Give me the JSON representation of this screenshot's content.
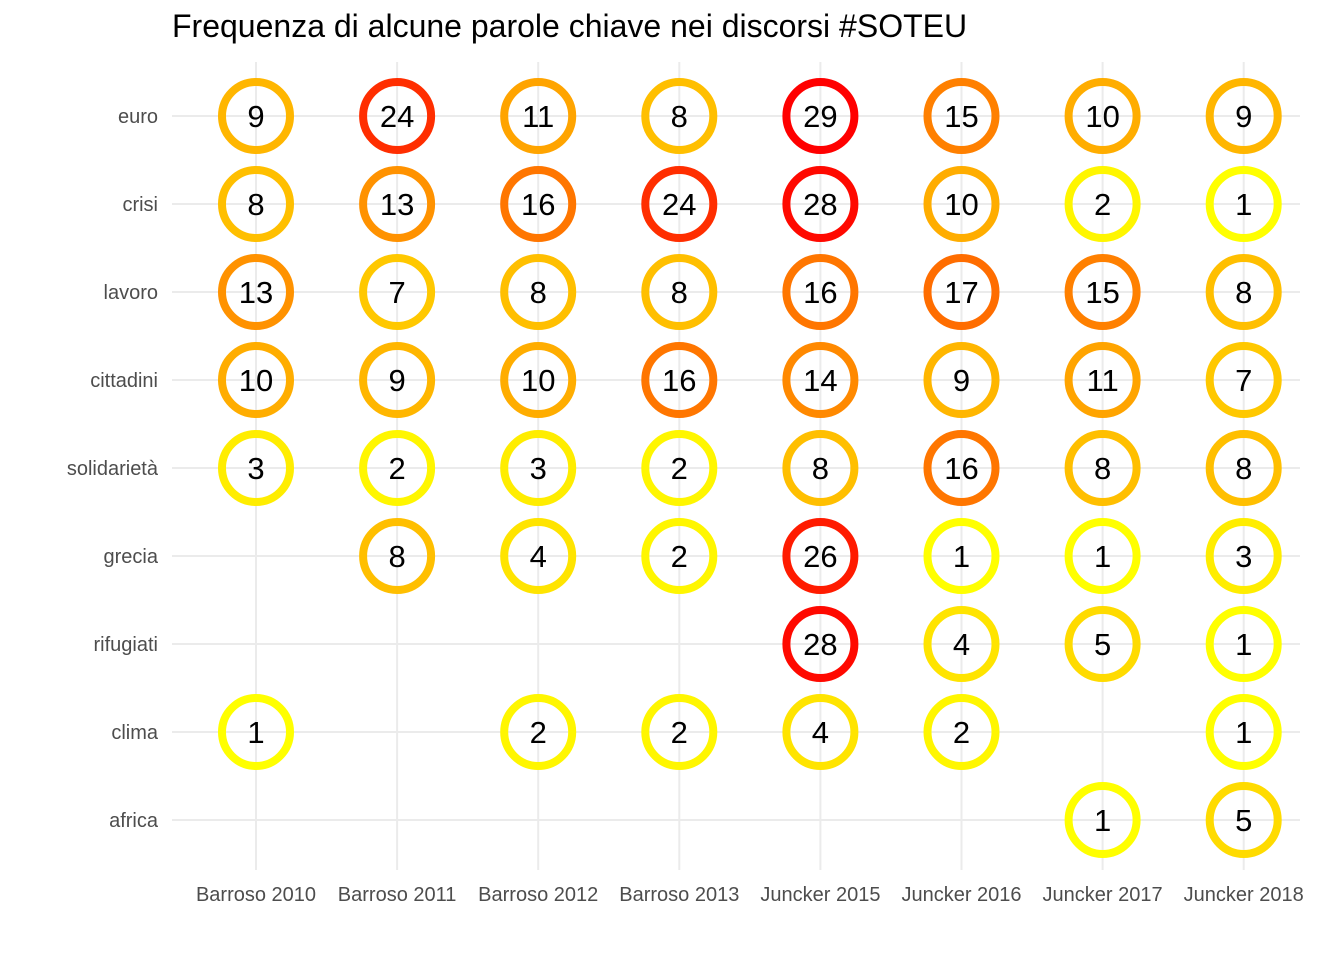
{
  "chart_data": {
    "type": "table",
    "title": "Frequenza di alcune parole chiave nei discorsi #SOTEU",
    "xlabel": "",
    "ylabel": "",
    "grid": true,
    "legend": "none",
    "x": [
      "Barroso 2010",
      "Barroso 2011",
      "Barroso 2012",
      "Barroso 2013",
      "Juncker 2015",
      "Juncker 2016",
      "Juncker 2017",
      "Juncker 2018"
    ],
    "y": [
      "euro",
      "crisi",
      "lavoro",
      "cittadini",
      "solidarietà",
      "grecia",
      "rifugiati",
      "clima",
      "africa"
    ],
    "values": [
      [
        9,
        24,
        11,
        8,
        29,
        15,
        10,
        9
      ],
      [
        8,
        13,
        16,
        24,
        28,
        10,
        2,
        1
      ],
      [
        13,
        7,
        8,
        8,
        16,
        17,
        15,
        8
      ],
      [
        10,
        9,
        10,
        16,
        14,
        9,
        11,
        7
      ],
      [
        3,
        2,
        3,
        2,
        8,
        16,
        8,
        8
      ],
      [
        null,
        8,
        4,
        2,
        26,
        1,
        1,
        3
      ],
      [
        null,
        null,
        null,
        null,
        28,
        4,
        5,
        1
      ],
      [
        1,
        null,
        2,
        2,
        4,
        2,
        null,
        1
      ],
      [
        null,
        null,
        null,
        null,
        null,
        null,
        1,
        5
      ]
    ],
    "color_scale": {
      "low": "#ffff00",
      "high": "#ff0000",
      "min": 1,
      "max": 29
    }
  }
}
